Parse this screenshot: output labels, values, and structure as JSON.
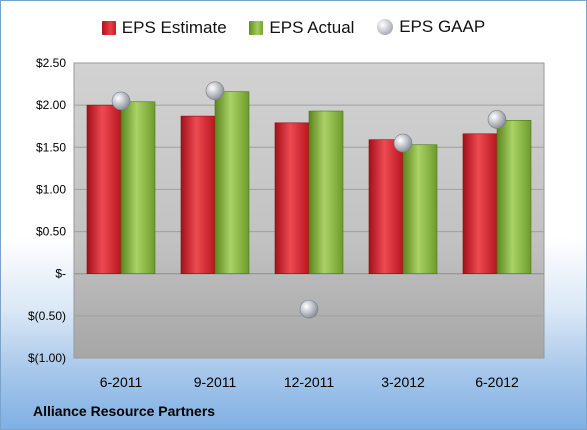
{
  "chart_data": {
    "type": "bar",
    "title": "",
    "xlabel": "",
    "ylabel": "",
    "categories": [
      "6-2011",
      "9-2011",
      "12-2011",
      "3-2012",
      "6-2012"
    ],
    "series": [
      {
        "name": "EPS Estimate",
        "type": "bar",
        "color": "#d0232b",
        "values": [
          2.0,
          1.87,
          1.79,
          1.59,
          1.66
        ]
      },
      {
        "name": "EPS Actual",
        "type": "bar",
        "color": "#8dbb47",
        "values": [
          2.04,
          2.16,
          1.93,
          1.53,
          1.82
        ]
      },
      {
        "name": "EPS GAAP",
        "type": "scatter",
        "color": "#b4b8bf",
        "values": [
          2.05,
          2.17,
          -0.42,
          1.55,
          1.83
        ]
      }
    ],
    "ylim": [
      -1.0,
      2.5
    ],
    "yticks": [
      2.5,
      2.0,
      1.5,
      1.0,
      0.5,
      0,
      -0.5,
      -1.0
    ],
    "ytick_labels": [
      "$2.50",
      "$2.00",
      "$1.50",
      "$1.00",
      "$0.50",
      "$-",
      "$(0.50)",
      "$(1.00)"
    ],
    "grid": true,
    "legend_position": "top-center"
  },
  "legend": {
    "estimate": "EPS Estimate",
    "actual": "EPS Actual",
    "gaap": "EPS GAAP"
  },
  "footer": {
    "company": "Alliance Resource Partners"
  }
}
